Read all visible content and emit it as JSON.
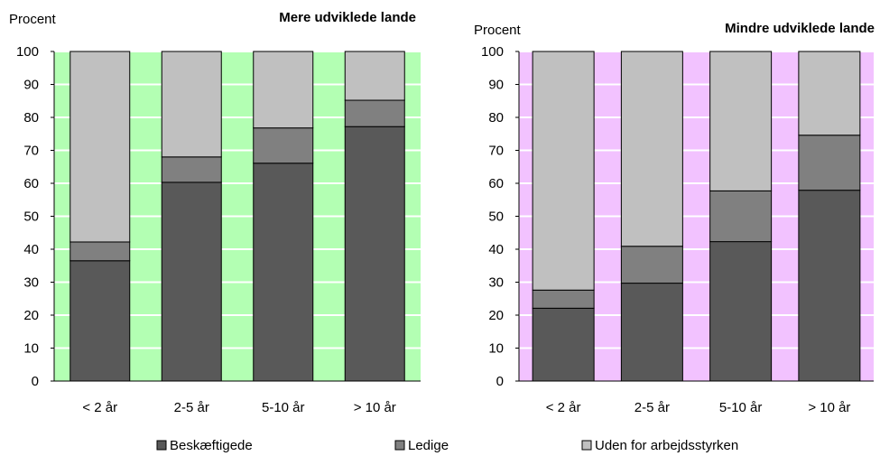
{
  "chart_data": [
    {
      "type": "bar",
      "stacked": true,
      "title": "Mere udviklede lande",
      "ylabel": "Procent",
      "xlabel": "",
      "categories": [
        "< 2 år",
        "2-5 år",
        "5-10 år",
        "> 10 år"
      ],
      "ylim": [
        0,
        100
      ],
      "yticks": [
        0,
        10,
        20,
        30,
        40,
        50,
        60,
        70,
        80,
        90,
        100
      ],
      "grid": true,
      "plot_background": "#b3ffb3",
      "series": [
        {
          "name": "Beskæftigede",
          "values": [
            36.5,
            60.3,
            66.1,
            77.2
          ],
          "color": "#595959"
        },
        {
          "name": "Ledige",
          "values": [
            5.7,
            7.7,
            10.7,
            8.0
          ],
          "color": "#808080"
        },
        {
          "name": "Uden for arbejdsstyrken",
          "values": [
            57.8,
            32.0,
            23.2,
            14.8
          ],
          "color": "#c0c0c0"
        }
      ]
    },
    {
      "type": "bar",
      "stacked": true,
      "title": "Mindre udviklede lande",
      "ylabel": "Procent",
      "xlabel": "",
      "categories": [
        "< 2 år",
        "2-5 år",
        "5-10 år",
        "> 10 år"
      ],
      "ylim": [
        0,
        100
      ],
      "yticks": [
        0,
        10,
        20,
        30,
        40,
        50,
        60,
        70,
        80,
        90,
        100
      ],
      "grid": true,
      "plot_background": "#f2c2ff",
      "series": [
        {
          "name": "Beskæftigede",
          "values": [
            22.1,
            29.7,
            42.3,
            57.9
          ],
          "color": "#595959"
        },
        {
          "name": "Ledige",
          "values": [
            5.5,
            11.2,
            15.4,
            16.7
          ],
          "color": "#808080"
        },
        {
          "name": "Uden for arbejdsstyrken",
          "values": [
            72.4,
            59.1,
            42.3,
            25.4
          ],
          "color": "#c0c0c0"
        }
      ]
    }
  ],
  "legend": {
    "placement": "bottom",
    "items": [
      "Beskæftigede",
      "Ledige",
      "Uden for arbejdsstyrken"
    ]
  }
}
